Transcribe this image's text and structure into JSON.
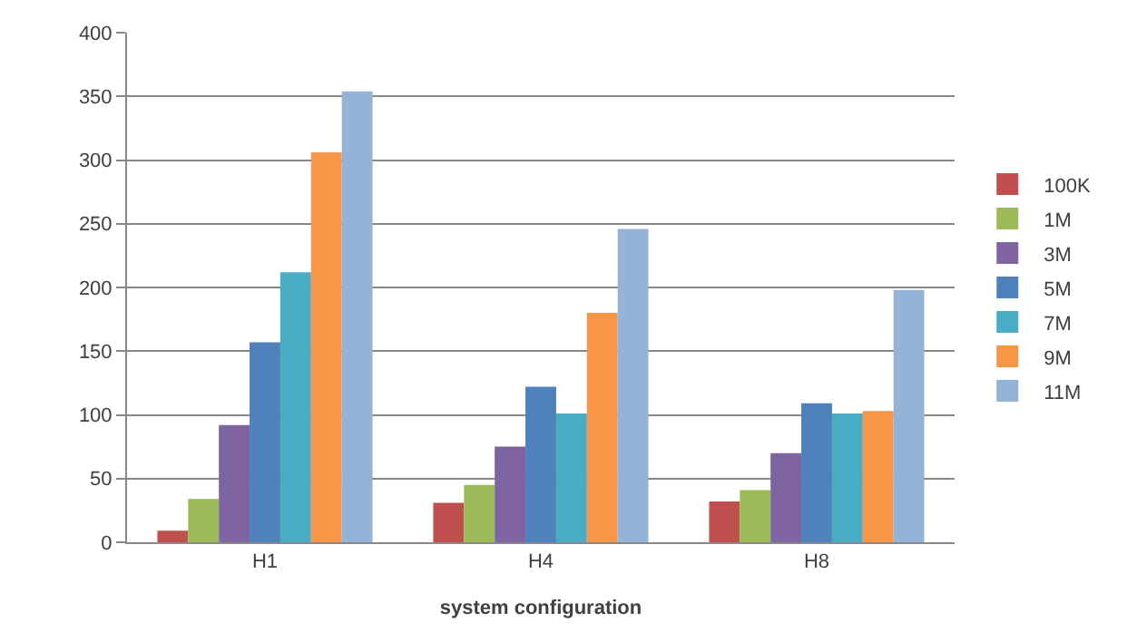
{
  "chart_data": {
    "type": "bar",
    "xlabel": "system configuration",
    "categories": [
      "H1",
      "H4",
      "H8"
    ],
    "series": [
      {
        "name": "100K",
        "color": "#c0504d",
        "values": [
          9,
          31,
          32
        ]
      },
      {
        "name": "1M",
        "color": "#9bbb59",
        "values": [
          34,
          45,
          41
        ]
      },
      {
        "name": "3M",
        "color": "#8064a2",
        "values": [
          92,
          75,
          70
        ]
      },
      {
        "name": "5M",
        "color": "#4f81bd",
        "values": [
          157,
          122,
          109
        ]
      },
      {
        "name": "7M",
        "color": "#4bacc6",
        "values": [
          212,
          101,
          101
        ]
      },
      {
        "name": "9M",
        "color": "#f79646",
        "values": [
          306,
          180,
          103
        ]
      },
      {
        "name": "11M",
        "color": "#95b3d7",
        "values": [
          354,
          246,
          198
        ]
      }
    ],
    "ylim": [
      0,
      400
    ],
    "yticks": [
      0,
      50,
      100,
      150,
      200,
      250,
      300,
      350,
      400
    ],
    "grid": "y",
    "legend": "right"
  }
}
